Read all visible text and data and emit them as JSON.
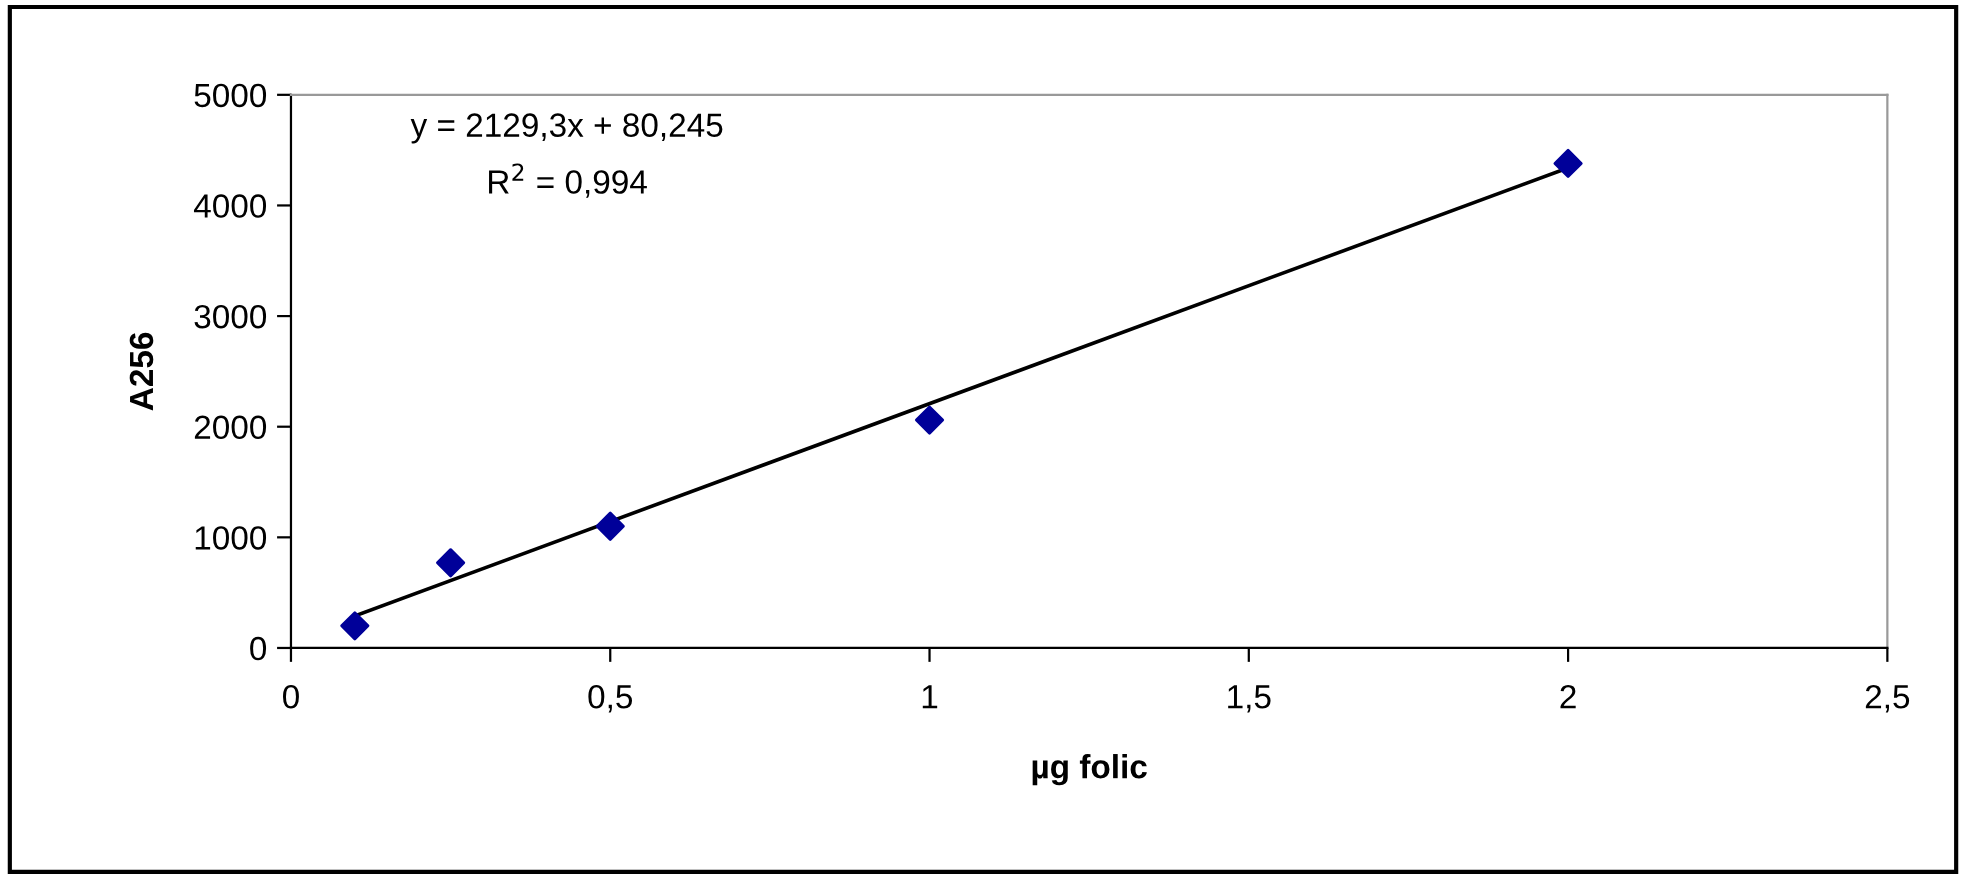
{
  "chart_data": {
    "type": "scatter",
    "xlabel": "µg folic",
    "ylabel": "A256",
    "annotations": [
      "y = 2129,3x + 80,245",
      "R$^{2}$ = 0,994"
    ],
    "series": [
      {
        "color": "#000099",
        "marker": "diamond",
        "x": [
          0.1,
          0.25,
          0.5,
          1,
          2
        ],
        "values": [
          200,
          770,
          1100,
          2060,
          4380
        ]
      },
      {
        "type": "line",
        "color": "#000000",
        "marker": "none",
        "line_style": "solid",
        "x": [
          0.1,
          2
        ],
        "values": [
          290,
          4340
        ]
      }
    ],
    "xlim": [
      0,
      2.5
    ],
    "ylim": [
      0,
      5000
    ],
    "xticks": [
      0,
      {
        "value": 0.5,
        "label": "0,5"
      },
      1,
      {
        "value": 1.5,
        "label": "1,5"
      },
      2,
      {
        "value": 2.5,
        "label": "2,5"
      }
    ],
    "yticks": [
      0,
      1000,
      2000,
      3000,
      4000,
      5000
    ],
    "grid": false,
    "legend": false
  }
}
